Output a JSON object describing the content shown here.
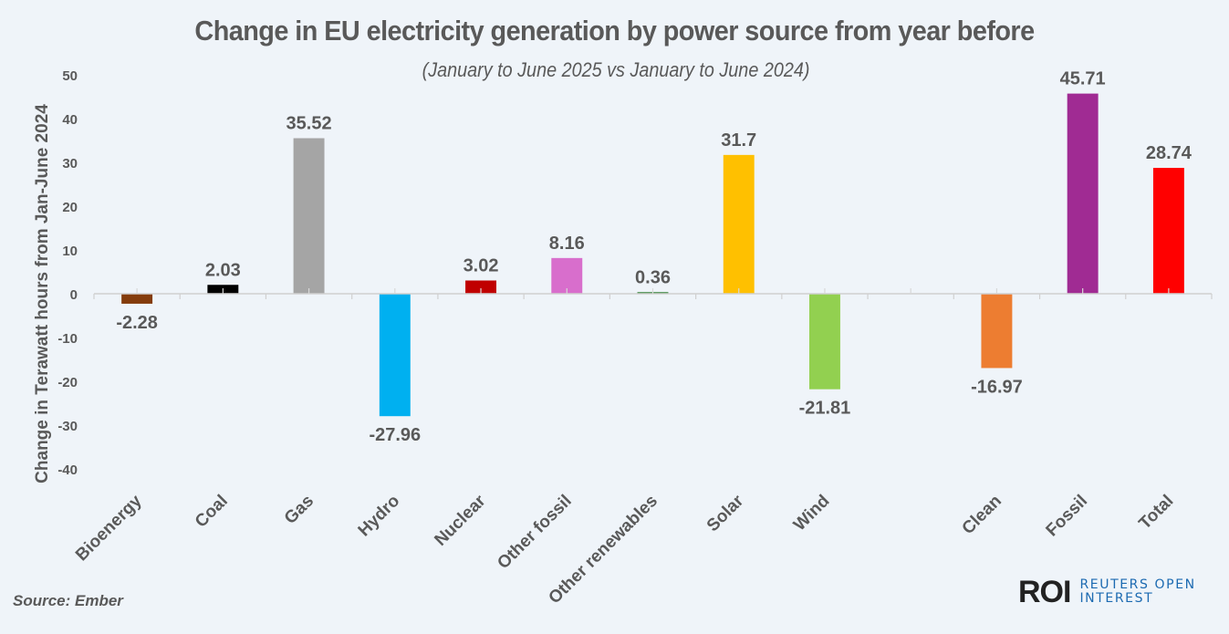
{
  "chart_data": {
    "type": "bar",
    "title": "Change in EU electricity generation by power source from year before",
    "subtitle": "(January to June 2025 vs January to June 2024)",
    "xlabel": "",
    "ylabel": "Change in Terawatt hours from Jan-June 2024",
    "ylim": [
      -40,
      50
    ],
    "yticks": [
      50,
      40,
      30,
      20,
      10,
      0,
      -10,
      -20,
      -30,
      -40
    ],
    "grid": false,
    "legend": "none",
    "categories": [
      "Bioenergy",
      "Coal",
      "Gas",
      "Hydro",
      "Nuclear",
      "Other fossil",
      "Other renewables",
      "Solar",
      "Wind",
      "",
      "Clean",
      "Fossil",
      "Total"
    ],
    "values": [
      -2.28,
      2.03,
      35.52,
      -27.96,
      3.02,
      8.16,
      0.36,
      31.7,
      -21.81,
      null,
      -16.97,
      45.71,
      28.74
    ],
    "value_labels": [
      "-2.28",
      "2.03",
      "35.52",
      "-27.96",
      "3.02",
      "8.16",
      "0.36",
      "31.7",
      "-21.81",
      "",
      "-16.97",
      "45.71",
      "28.74"
    ],
    "colors": [
      "#843c0c",
      "#000000",
      "#a5a5a5",
      "#00b0f0",
      "#c00000",
      "#d86ecc",
      "#2e7d32",
      "#ffc000",
      "#92d050",
      null,
      "#ed7d31",
      "#a02b93",
      "#ff0000"
    ]
  },
  "footer": {
    "source": "Source: Ember",
    "logo_mark": "ROI",
    "logo_line1": "REUTERS OPEN",
    "logo_line2": "INTEREST"
  }
}
